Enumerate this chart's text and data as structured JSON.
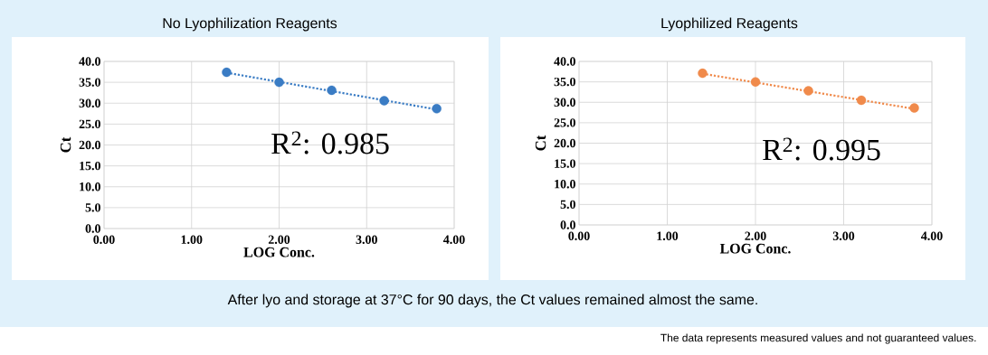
{
  "chart_data": [
    {
      "type": "scatter",
      "title": "No Lyophilization Reagents",
      "xlabel": "LOG Conc.",
      "ylabel": "Ct",
      "xlim": [
        0,
        4
      ],
      "ylim": [
        0,
        40
      ],
      "xticks": [
        {
          "value": 0,
          "label": "0.00"
        },
        {
          "value": 1,
          "label": "1.00"
        },
        {
          "value": 2,
          "label": "2.00"
        },
        {
          "value": 3,
          "label": "3.00"
        },
        {
          "value": 4,
          "label": "4.00"
        }
      ],
      "yticks": [
        {
          "value": 0,
          "label": "0.0"
        },
        {
          "value": 5,
          "label": "5.0"
        },
        {
          "value": 10,
          "label": "10.0"
        },
        {
          "value": 15,
          "label": "15.0"
        },
        {
          "value": 20,
          "label": "20.0"
        },
        {
          "value": 25,
          "label": "25.0"
        },
        {
          "value": 30,
          "label": "30.0"
        },
        {
          "value": 35,
          "label": "35.0"
        },
        {
          "value": 40,
          "label": "40.0"
        }
      ],
      "grid": true,
      "series": [
        {
          "color": "#3a7cc4",
          "marker": "circle",
          "x": [
            1.4,
            2.0,
            2.6,
            3.2,
            3.8
          ],
          "values": [
            37.4,
            35.0,
            33.1,
            30.6,
            28.7
          ]
        },
        {
          "type": "line",
          "color": "#3a7cc4",
          "line_style": "dotted",
          "marker": "none",
          "x": [
            1.4,
            3.8
          ],
          "values": [
            37.3,
            28.5
          ]
        }
      ],
      "annotations": [
        "R$^{2}$: 0.985"
      ]
    },
    {
      "type": "scatter",
      "title": "Lyophilized Reagents",
      "xlabel": "LOG Conc.",
      "ylabel": "Ct",
      "xlim": [
        0,
        4
      ],
      "ylim": [
        0,
        40
      ],
      "xticks": [
        {
          "value": 0,
          "label": "0.00"
        },
        {
          "value": 1,
          "label": "1.00"
        },
        {
          "value": 2,
          "label": "2.00"
        },
        {
          "value": 3,
          "label": "3.00"
        },
        {
          "value": 4,
          "label": "4.00"
        }
      ],
      "yticks": [
        {
          "value": 0,
          "label": "0.0"
        },
        {
          "value": 5,
          "label": "5.0"
        },
        {
          "value": 10,
          "label": "10.0"
        },
        {
          "value": 15,
          "label": "15.0"
        },
        {
          "value": 20,
          "label": "20.0"
        },
        {
          "value": 25,
          "label": "25.0"
        },
        {
          "value": 30,
          "label": "30.0"
        },
        {
          "value": 35,
          "label": "35.0"
        },
        {
          "value": 40,
          "label": "40.0"
        }
      ],
      "grid": true,
      "series": [
        {
          "color": "#f08a4b",
          "marker": "circle",
          "x": [
            1.4,
            2.0,
            2.6,
            3.2,
            3.8
          ],
          "values": [
            37.1,
            35.0,
            32.8,
            30.5,
            28.6
          ]
        },
        {
          "type": "line",
          "color": "#f08a4b",
          "line_style": "dotted",
          "marker": "none",
          "x": [
            1.4,
            3.8
          ],
          "values": [
            37.0,
            28.4
          ]
        }
      ],
      "annotations": [
        "R$^{2}$: 0.995",
        "After lyo and storage at 37°C for 90 days, the Ct values remained almost the same.",
        "The data represents measured values and not guaranteed values."
      ]
    }
  ]
}
